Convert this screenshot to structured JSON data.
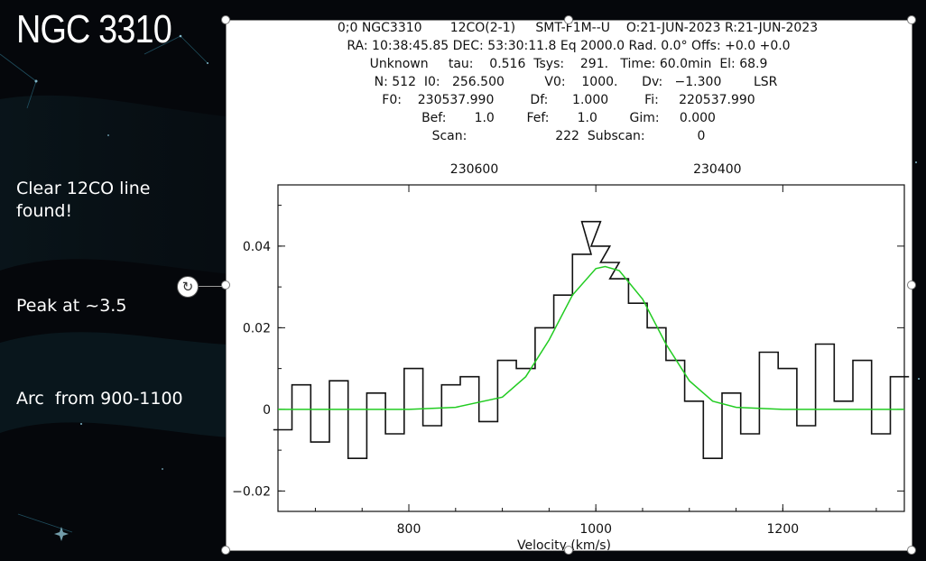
{
  "slide": {
    "title": "NGC 3310",
    "notes": [
      "Clear 12CO line found!",
      "Peak at ~3.5",
      "Arc  from 900-1100"
    ]
  },
  "spectrum_header": {
    "lines": [
      "0;0 NGC3310       12CO(2-1)     SMT-F1M--U    O:21-JUN-2023 R:21-JUN-2023",
      "RA: 10:38:45.85 DEC: 53:30:11.8 Eq 2000.0 Rad. 0.0° Offs: +0.0 +0.0",
      "Unknown     tau:    0.516  Tsys:    291.   Time: 60.0min  El: 68.9",
      "N: 512  I0:   256.500          V0:    1000.      Dv:   −1.300        LSR",
      "F0:    230537.990         Df:      1.000         Fi:     220537.990",
      "Bef:       1.0        Fef:       1.0        Gim:     0.000",
      "Scan:                      222  Subscan:             0"
    ]
  },
  "chart_data": {
    "type": "line",
    "xlabel": "Velocity (km/s)",
    "ylabel": "",
    "xlim": [
      660,
      1330
    ],
    "ylim": [
      -0.025,
      0.055
    ],
    "x_ticks": [
      800,
      1000,
      1200
    ],
    "y_ticks": [
      -0.02,
      0,
      0.02,
      0.04
    ],
    "y_tick_labels": [
      "−0.02",
      "0",
      "0.02",
      "0.04"
    ],
    "top_axis_ticks": [
      230600,
      230400
    ],
    "top_axis_tick_velocities": [
      870,
      1130
    ],
    "colors": {
      "spectrum": "#111111",
      "fit": "#22cc22"
    },
    "series": [
      {
        "style": "histogram",
        "x": [
          665,
          685,
          705,
          725,
          745,
          765,
          785,
          805,
          825,
          845,
          865,
          885,
          905,
          925,
          945,
          965,
          985,
          995,
          1005,
          1015,
          1025,
          1045,
          1065,
          1085,
          1105,
          1125,
          1145,
          1165,
          1185,
          1205,
          1225,
          1245,
          1265,
          1285,
          1305,
          1325
        ],
        "y": [
          -0.005,
          0.006,
          -0.008,
          0.007,
          -0.012,
          0.004,
          -0.006,
          0.01,
          -0.004,
          0.006,
          0.008,
          -0.003,
          0.012,
          0.01,
          0.02,
          0.028,
          0.038,
          0.046,
          0.04,
          0.036,
          0.032,
          0.026,
          0.02,
          0.012,
          0.002,
          -0.012,
          0.004,
          -0.006,
          0.014,
          0.01,
          -0.004,
          0.016,
          0.002,
          0.012,
          -0.006,
          0.008
        ]
      },
      {
        "style": "gaussian-fit",
        "x": [
          660,
          800,
          850,
          900,
          925,
          950,
          975,
          1000,
          1010,
          1025,
          1050,
          1075,
          1100,
          1125,
          1150,
          1200,
          1330
        ],
        "y": [
          0,
          0,
          0.0005,
          0.003,
          0.008,
          0.017,
          0.028,
          0.0345,
          0.035,
          0.034,
          0.027,
          0.016,
          0.007,
          0.002,
          0.0005,
          0,
          0
        ]
      }
    ]
  }
}
